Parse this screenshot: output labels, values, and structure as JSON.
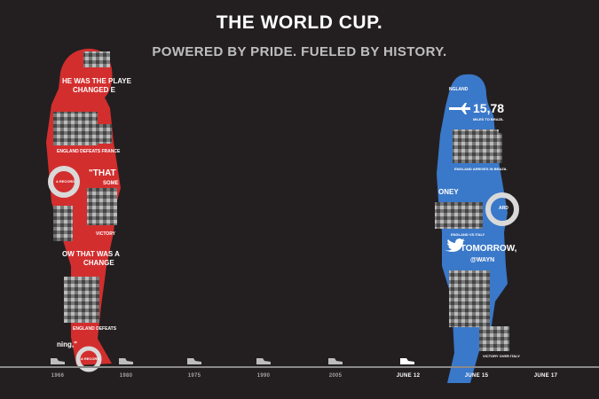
{
  "header": {
    "title": "THE WORLD CUP.",
    "subtitle": "POWERED BY PRIDE. FUELED BY HISTORY."
  },
  "red_figure": {
    "color": "#d32e2e",
    "texts": {
      "quote1": "HE WAS THE PLAYE",
      "quote1b": "CHANGED E",
      "caption1": "ENGLAND DEFEATS FRANCE",
      "quote2": "\"THAT",
      "quote2b": "SOME",
      "stat1": "A RECORD",
      "caption2": "VICTORY",
      "quote3": "OW THAT WAS A",
      "quote3b": "CHANGE",
      "caption3": "ENGLAND DEFEATS",
      "quote4": "ning,\"",
      "stat2": "A RECORD"
    }
  },
  "blue_figure": {
    "color": "#3a78c9",
    "texts": {
      "header1": "NGLAND",
      "count": "15,78",
      "count_caption": "MILES TO BRAZIL",
      "caption1": "ENGLAND ARRIVES IN BRAZIL",
      "name": "ONEY",
      "stat": "ARD",
      "caption2": "ENGLAND VS ITALY",
      "quote": "\"TOMORROW,",
      "handle": "@WAYN",
      "caption3": "VICTORY OVER ITALY"
    }
  },
  "timeline": {
    "labels": [
      "1966",
      "1980",
      "1975",
      "1990",
      "2005",
      "JUNE 12",
      "JUNE 15",
      "JUNE 17"
    ]
  },
  "colors": {
    "background": "#231f20",
    "red": "#d32e2e",
    "blue": "#3a78c9"
  }
}
